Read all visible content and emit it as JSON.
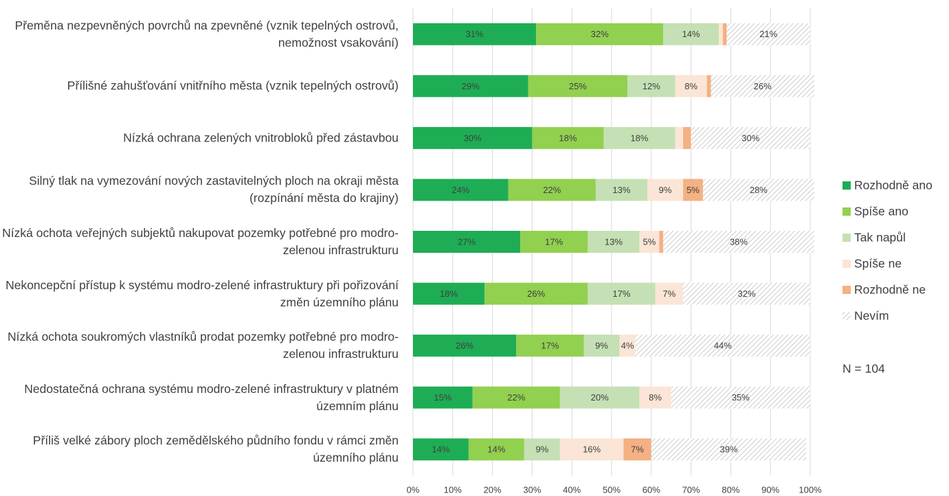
{
  "chart_data": {
    "type": "stacked-bar-horizontal",
    "categories": [
      "Přeměna nezpevněných povrchů na zpevněné (vznik tepelných ostrovů, nemožnost vsakování)",
      "Přílišné zahušťování vnitřního města (vznik tepelných ostrovů)",
      "Nízká ochrana zelených vnitrobloků před zástavbou",
      "Silný tlak na vymezování nových zastavitelných ploch na okraji města (rozpínání města do krajiny)",
      "Nízká ochota veřejných subjektů nakupovat pozemky potřebné pro modro-zelenou infrastrukturu",
      "Nekoncepční přístup k systému modro-zelené infrastruktury při pořizování změn územního plánu",
      "Nízká ochota soukromých vlastníků prodat pozemky potřebné pro modro-zelenou infrastrukturu",
      "Nedostatečná ochrana systému modro-zelené infrastruktury v platném územním plánu",
      "Příliš velké zábory ploch zemědělského půdního fondu v rámci změn územního plánu"
    ],
    "series": [
      {
        "name": "Rozhodně ano",
        "color": "#1ead55",
        "values": [
          31,
          29,
          30,
          24,
          27,
          18,
          26,
          15,
          14
        ],
        "value_labels": [
          "31%",
          "29%",
          "30%",
          "24%",
          "27%",
          "18%",
          "26%",
          "15%",
          "14%"
        ]
      },
      {
        "name": "Spíše ano",
        "color": "#92d050",
        "values": [
          32,
          25,
          18,
          22,
          17,
          26,
          17,
          22,
          14
        ],
        "value_labels": [
          "32%",
          "25%",
          "18%",
          "22%",
          "17%",
          "26%",
          "17%",
          "22%",
          "14%"
        ]
      },
      {
        "name": "Tak napůl",
        "color": "#c5e0b4",
        "values": [
          14,
          12,
          18,
          13,
          13,
          17,
          9,
          20,
          9
        ],
        "value_labels": [
          "14%",
          "12%",
          "18%",
          "13%",
          "13%",
          "17%",
          "9%",
          "20%",
          "9%"
        ]
      },
      {
        "name": "Spíše ne",
        "color": "#fbe5d6",
        "values": [
          1,
          8,
          2,
          9,
          5,
          7,
          4,
          8,
          16
        ],
        "value_labels": [
          null,
          "8%",
          null,
          "9%",
          "5%",
          "7%",
          "4%",
          "8%",
          "16%"
        ]
      },
      {
        "name": "Rozhodně ne",
        "color": "#f4b183",
        "values": [
          1,
          1,
          2,
          5,
          1,
          0,
          0,
          0,
          7
        ],
        "value_labels": [
          null,
          null,
          null,
          "5%",
          null,
          null,
          null,
          null,
          "7%"
        ]
      },
      {
        "name": "Nevím",
        "color": "#bfbfbf",
        "hatch": true,
        "values": [
          21,
          26,
          30,
          28,
          38,
          32,
          44,
          35,
          39
        ],
        "value_labels": [
          "21%",
          "26%",
          "30%",
          "28%",
          "38%",
          "32%",
          "44%",
          "35%",
          "39%"
        ]
      }
    ],
    "xlim": [
      0,
      100
    ],
    "xticks": [
      {
        "value": 0,
        "label": "0%"
      },
      {
        "value": 10,
        "label": "10%"
      },
      {
        "value": 20,
        "label": "20%"
      },
      {
        "value": 30,
        "label": "30%"
      },
      {
        "value": 40,
        "label": "40%"
      },
      {
        "value": 50,
        "label": "50%"
      },
      {
        "value": 60,
        "label": "60%"
      },
      {
        "value": 70,
        "label": "70%"
      },
      {
        "value": 80,
        "label": "80%"
      },
      {
        "value": 90,
        "label": "90%"
      },
      {
        "value": 100,
        "label": "100%"
      }
    ],
    "grid": true,
    "legend": "right",
    "annotation": "N = 104"
  }
}
